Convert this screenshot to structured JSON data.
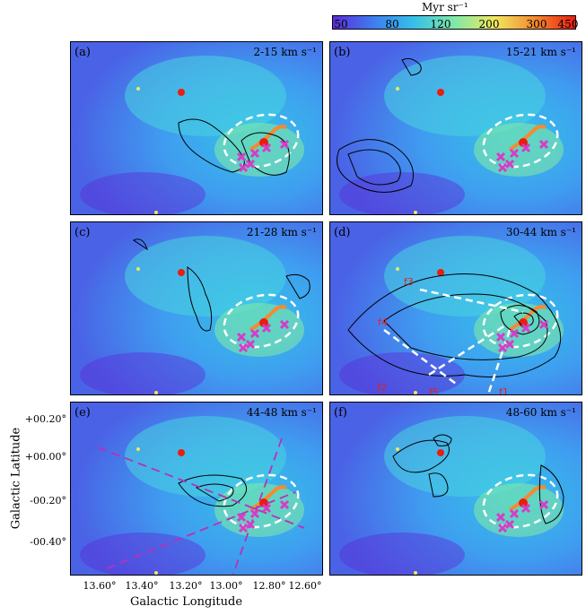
{
  "colorbar": {
    "unit_label": "Myr sr⁻¹",
    "ticks": [
      "50",
      "80",
      "120",
      "200",
      "300",
      "450"
    ],
    "colors": [
      "#5b2dd8",
      "#3f7cf0",
      "#35c0e8",
      "#7fe8a8",
      "#f0e860",
      "#f58a30",
      "#e81e10"
    ]
  },
  "panels": [
    {
      "label": "(a)",
      "velocity": "2-15 km s⁻¹"
    },
    {
      "label": "(b)",
      "velocity": "15-21 km s⁻¹"
    },
    {
      "label": "(c)",
      "velocity": "21-28 km s⁻¹"
    },
    {
      "label": "(d)",
      "velocity": "30-44 km s⁻¹"
    },
    {
      "label": "(e)",
      "velocity": "44-48 km s⁻¹"
    },
    {
      "label": "(f)",
      "velocity": "48-60 km s⁻¹"
    }
  ],
  "filament_labels": [
    "f3",
    "f4",
    "f2",
    "f5",
    "f1"
  ],
  "axes": {
    "xlabel": "Galactic Longitude",
    "ylabel": "Galactic Latitude",
    "xticks": [
      "13.60°",
      "13.40°",
      "13.20°",
      "13.00°",
      "12.80°",
      "12.60°"
    ],
    "yticks": [
      "+00.20°",
      "+00.00°",
      "-00.20°",
      "-00.40°"
    ]
  }
}
